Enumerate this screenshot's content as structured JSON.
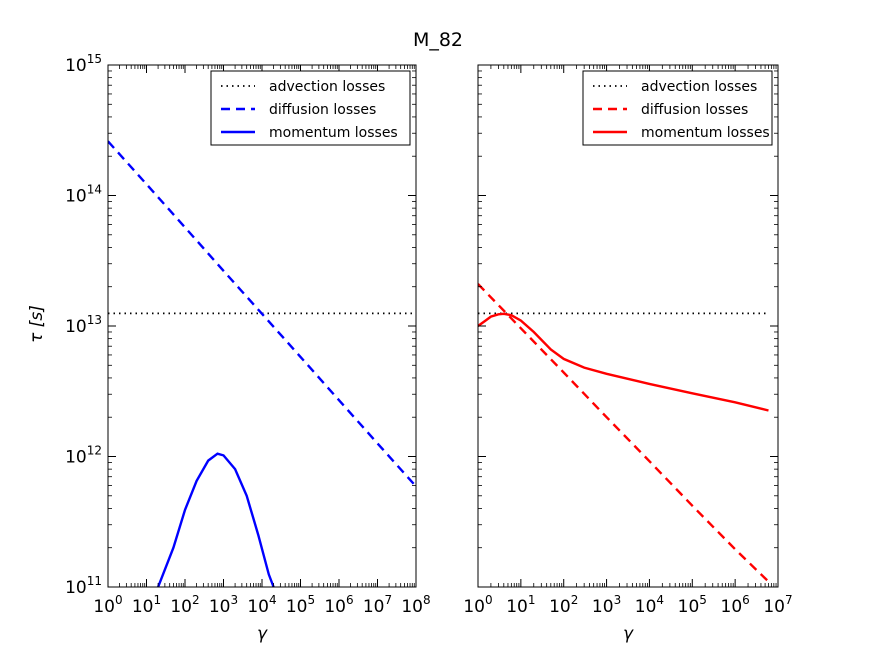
{
  "figure": {
    "title": "M_82",
    "ylabel": "τ [s]",
    "xlabel": "γ"
  },
  "chart_data": [
    {
      "type": "line",
      "x_scale": "log",
      "y_scale": "log",
      "xlim": [
        1,
        100000000
      ],
      "ylim": [
        100000000000,
        1000000000000000
      ],
      "xlabel": "γ",
      "ylabel": "τ [s]",
      "x_tick_labels": [
        "10^0",
        "10^1",
        "10^2",
        "10^3",
        "10^4",
        "10^5",
        "10^6",
        "10^7",
        "10^8"
      ],
      "y_tick_labels": [
        "10^11",
        "10^12",
        "10^13",
        "10^14",
        "10^15"
      ],
      "legend_position": "top-right",
      "series": [
        {
          "name": "advection losses",
          "color": "#000000",
          "style": "dotted",
          "x": [
            1,
            100000000
          ],
          "y": [
            12500000000000,
            12500000000000
          ]
        },
        {
          "name": "diffusion losses",
          "color": "#0000ff",
          "style": "dashed",
          "x": [
            1,
            10,
            100,
            1000,
            10000,
            100000,
            1000000,
            10000000,
            100000000
          ],
          "y": [
            260000000000000,
            122000000000000,
            57000000000000,
            26500000000000,
            12400000000000,
            5800000000000,
            2700000000000,
            1260000000000,
            590000000000
          ]
        },
        {
          "name": "momentum losses",
          "color": "#0000ff",
          "style": "solid",
          "x": [
            20,
            50,
            100,
            200,
            400,
            700,
            1000,
            2000,
            4000,
            8000,
            15000,
            20000
          ],
          "y": [
            100000000000,
            200000000000,
            390000000000,
            650000000000,
            930000000000,
            1050000000000,
            1020000000000,
            800000000000,
            500000000000,
            250000000000,
            125000000000,
            100000000000
          ]
        }
      ]
    },
    {
      "type": "line",
      "x_scale": "log",
      "y_scale": "log",
      "xlim": [
        1,
        10000000
      ],
      "ylim": [
        100000000000,
        1000000000000000
      ],
      "xlabel": "γ",
      "x_tick_labels": [
        "10^0",
        "10^1",
        "10^2",
        "10^3",
        "10^4",
        "10^5",
        "10^6",
        "10^7"
      ],
      "legend_position": "top-right",
      "series": [
        {
          "name": "advection losses",
          "color": "#000000",
          "style": "dotted",
          "x": [
            1,
            6000000
          ],
          "y": [
            12500000000000,
            12500000000000
          ]
        },
        {
          "name": "diffusion losses",
          "color": "#ff0000",
          "style": "dashed",
          "x": [
            1,
            10,
            100,
            1000,
            10000,
            100000,
            1000000,
            6000000
          ],
          "y": [
            21000000000000,
            9600000000000,
            4400000000000,
            2000000000000,
            920000000000,
            420000000000,
            195000000000,
            110000000000
          ]
        },
        {
          "name": "momentum losses",
          "color": "#ff0000",
          "style": "solid",
          "x": [
            1,
            1.5,
            2,
            3,
            4,
            6,
            10,
            20,
            50,
            100,
            300,
            1000,
            10000,
            100000,
            1000000,
            6000000
          ],
          "y": [
            10000000000000,
            11000000000000,
            11800000000000,
            12300000000000,
            12400000000000,
            12100000000000,
            11000000000000,
            9000000000000,
            6600000000000,
            5600000000000,
            4800000000000,
            4300000000000,
            3600000000000,
            3050000000000,
            2600000000000,
            2250000000000
          ]
        }
      ]
    }
  ]
}
